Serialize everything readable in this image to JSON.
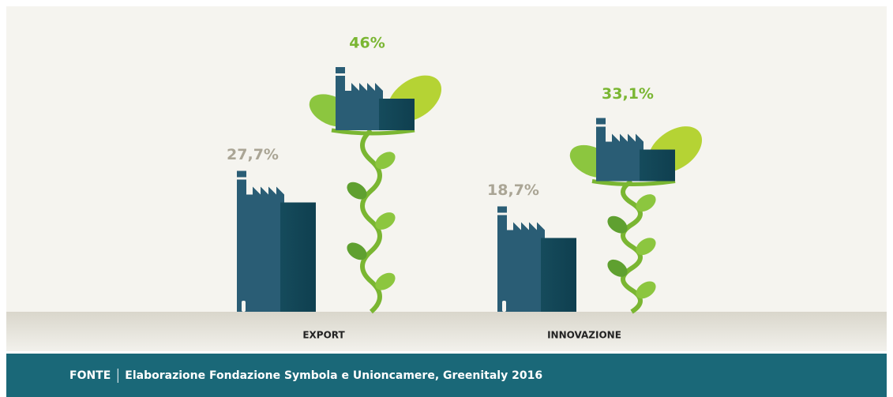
{
  "chart_data": {
    "type": "plant-factory",
    "categories": [
      "EXPORT",
      "INNOVAZIONE"
    ],
    "series": [
      {
        "color": "#aaa595",
        "values": [
          27.7,
          18.7
        ],
        "value_labels": [
          "27,7%",
          "18,7%"
        ]
      },
      {
        "color": "#7ab632",
        "values": [
          46,
          33.1
        ],
        "value_labels": [
          "46%",
          "33,1%"
        ]
      }
    ],
    "source_label": "FONTE",
    "source": "Elaborazione Fondazione Symbola e Unioncamere, Greenitaly 2016"
  }
}
